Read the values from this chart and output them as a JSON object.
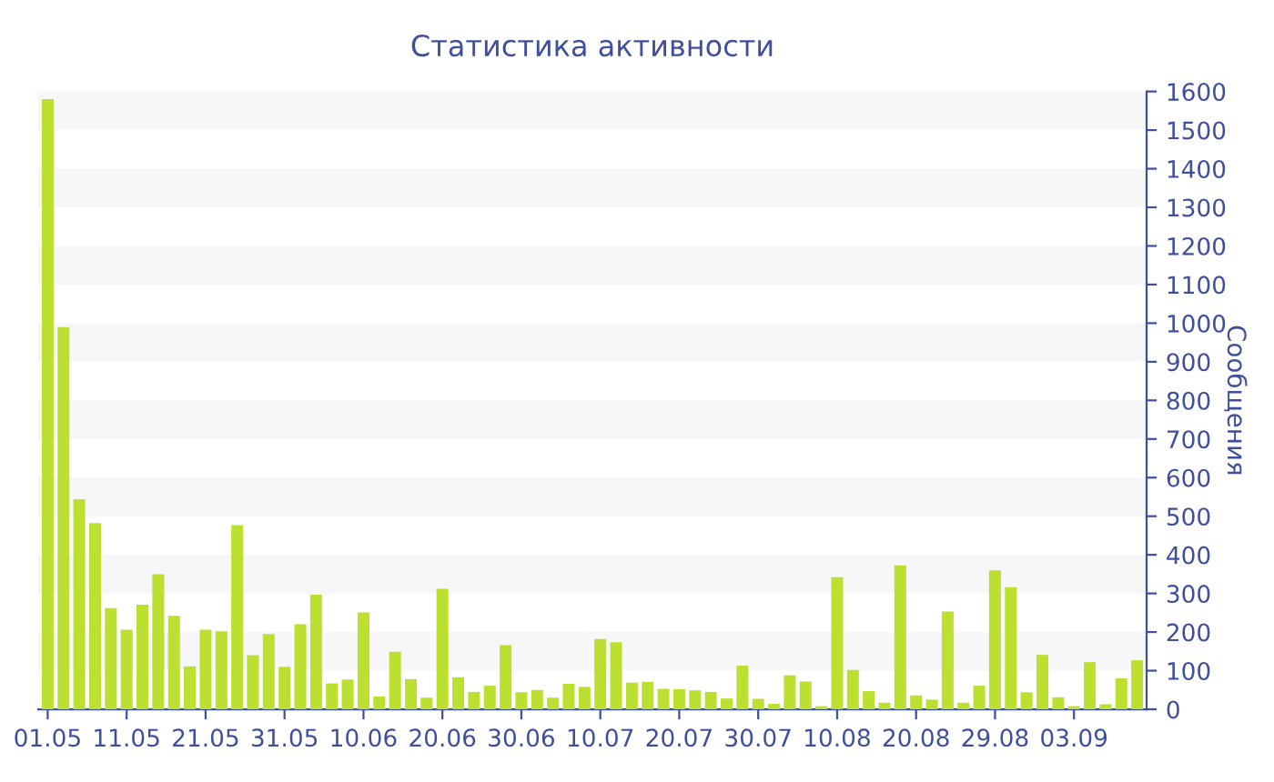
{
  "chart_data": {
    "type": "bar",
    "title": "Статистика активности",
    "ylabel": "Сообщения",
    "color": "#bbe030",
    "categories": [
      "01.05",
      null,
      null,
      null,
      null,
      "11.05",
      null,
      null,
      null,
      null,
      "21.05",
      null,
      null,
      null,
      null,
      "31.05",
      null,
      null,
      null,
      null,
      "10.06",
      null,
      null,
      null,
      null,
      "20.06",
      null,
      null,
      null,
      null,
      "30.06",
      null,
      null,
      null,
      null,
      "10.07",
      null,
      null,
      null,
      null,
      "20.07",
      null,
      null,
      null,
      null,
      "30.07",
      null,
      null,
      null,
      null,
      "10.08",
      null,
      null,
      null,
      null,
      "20.08",
      null,
      null,
      null,
      null,
      "29.08",
      null,
      null,
      null,
      null,
      "03.09",
      null,
      null,
      null,
      null
    ],
    "values": [
      1580,
      990,
      544,
      482,
      262,
      206,
      271,
      350,
      242,
      111,
      206,
      202,
      477,
      140,
      195,
      110,
      220,
      297,
      67,
      77,
      251,
      33,
      149,
      78,
      30,
      312,
      83,
      45,
      61,
      166,
      44,
      50,
      30,
      66,
      58,
      182,
      174,
      69,
      71,
      53,
      52,
      49,
      45,
      28,
      113,
      27,
      14,
      88,
      72,
      8,
      342,
      102,
      47,
      17,
      373,
      36,
      25,
      253,
      17,
      61,
      360,
      316,
      44,
      141,
      31,
      8,
      122,
      13,
      80,
      127
    ],
    "ylim": [
      0,
      1600
    ],
    "yticks": [
      0,
      100,
      200,
      300,
      400,
      500,
      600,
      700,
      800,
      900,
      1000,
      1100,
      1200,
      1300,
      1400,
      1500,
      1600
    ],
    "bands": [
      {
        "axis": "y",
        "from": 100,
        "to": 200,
        "color": "#f7f7f7"
      },
      {
        "axis": "y",
        "from": 300,
        "to": 400,
        "color": "#f7f7f7"
      },
      {
        "axis": "y",
        "from": 500,
        "to": 600,
        "color": "#f7f7f7"
      },
      {
        "axis": "y",
        "from": 700,
        "to": 800,
        "color": "#f7f7f7"
      },
      {
        "axis": "y",
        "from": 900,
        "to": 1000,
        "color": "#f7f7f7"
      },
      {
        "axis": "y",
        "from": 1100,
        "to": 1200,
        "color": "#f7f7f7"
      },
      {
        "axis": "y",
        "from": 1300,
        "to": 1400,
        "color": "#f7f7f7"
      },
      {
        "axis": "y",
        "from": 1500,
        "to": 1600,
        "color": "#f7f7f7"
      }
    ],
    "grid": false,
    "legend": false
  }
}
